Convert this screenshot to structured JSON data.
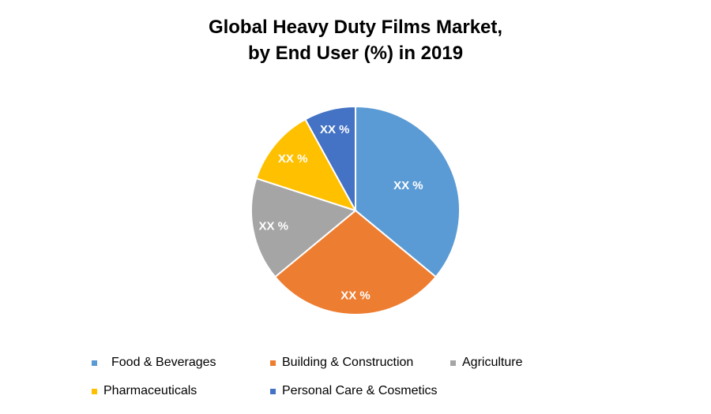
{
  "chart_data": {
    "type": "pie",
    "title_line1": "Global Heavy Duty Films Market,",
    "title_line2": "by End User (%) in 2019",
    "categories": [
      "Food & Beverages",
      "Building & Construction",
      "Agriculture",
      "Pharmaceuticals",
      "Personal Care & Cosmetics"
    ],
    "values": [
      36,
      28,
      16,
      12,
      8
    ],
    "data_labels": [
      "XX %",
      "XX %",
      "XX %",
      "XX %",
      "XX %"
    ],
    "colors": [
      "#5B9BD5",
      "#ED7D31",
      "#A5A5A5",
      "#FFC000",
      "#4472C4"
    ],
    "legend": {
      "position": "bottom",
      "entries": [
        {
          "label": "Food & Beverages",
          "color": "#5B9BD5"
        },
        {
          "label": "Building & Construction",
          "color": "#ED7D31"
        },
        {
          "label": "Agriculture",
          "color": "#A5A5A5"
        },
        {
          "label": "Pharmaceuticals",
          "color": "#FFC000"
        },
        {
          "label": "Personal Care & Cosmetics",
          "color": "#4472C4"
        }
      ]
    }
  }
}
